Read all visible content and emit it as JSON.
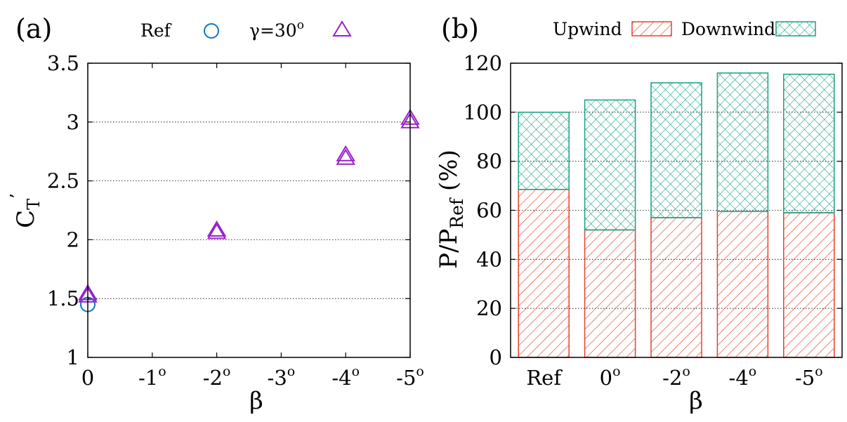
{
  "colors": {
    "ref": "#0a7ab8",
    "gamma30": "#9a22cc",
    "upwind": "#e8402c",
    "downwind": "#17a283",
    "grid": "#000000"
  },
  "chart_data": [
    {
      "type": "scatter",
      "panel_label": "(a)",
      "ylabel": {
        "base": "C",
        "sub": "T",
        "sup": "’"
      },
      "xlabel": "β",
      "ylim": [
        1,
        3.5
      ],
      "yticks": [
        "1",
        "1.5",
        "2",
        "2.5",
        "3",
        "3.5"
      ],
      "ytick_values": [
        1,
        1.5,
        2,
        2.5,
        3,
        3.5
      ],
      "xtick_values": [
        0,
        -1,
        -2,
        -3,
        -4,
        -5
      ],
      "xticks": [
        {
          "base": "0",
          "sup": ""
        },
        {
          "base": "-1",
          "sup": "o"
        },
        {
          "base": "-2",
          "sup": "o"
        },
        {
          "base": "-3",
          "sup": "o"
        },
        {
          "base": "-4",
          "sup": "o"
        },
        {
          "base": "-5",
          "sup": "o"
        }
      ],
      "grid": "horizontal",
      "legend_position": "top",
      "series": [
        {
          "name": "Ref",
          "marker": "circle",
          "x": [
            0
          ],
          "y": [
            1.45
          ]
        },
        {
          "name": "γ=30",
          "name_sup": "o",
          "marker": "triangle",
          "x": [
            0,
            0,
            -2,
            -2,
            -4,
            -4,
            -5,
            -5
          ],
          "y": [
            1.52,
            1.54,
            2.06,
            2.08,
            2.69,
            2.72,
            3.0,
            3.03
          ]
        }
      ]
    },
    {
      "type": "bar",
      "stacked": true,
      "panel_label": "(b)",
      "ylabel": {
        "base": "P/P",
        "sub": "Ref",
        "suffix": " (%)"
      },
      "xlabel": "β",
      "ylim": [
        0,
        120
      ],
      "yticks": [
        "0",
        "20",
        "40",
        "60",
        "80",
        "100",
        "120"
      ],
      "ytick_values": [
        0,
        20,
        40,
        60,
        80,
        100,
        120
      ],
      "categories": [
        {
          "base": "Ref",
          "sup": ""
        },
        {
          "base": "0",
          "sup": "o"
        },
        {
          "base": "-2",
          "sup": "o"
        },
        {
          "base": "-4",
          "sup": "o"
        },
        {
          "base": "-5",
          "sup": "o"
        }
      ],
      "grid": "horizontal",
      "legend_position": "top",
      "series": [
        {
          "name": "Upwind",
          "pattern": "hatch",
          "values": [
            68.5,
            52,
            57,
            59.5,
            59
          ]
        },
        {
          "name": "Downwind",
          "pattern": "crosshatch",
          "values": [
            31.5,
            53,
            55,
            56.5,
            56.5
          ]
        }
      ]
    }
  ]
}
